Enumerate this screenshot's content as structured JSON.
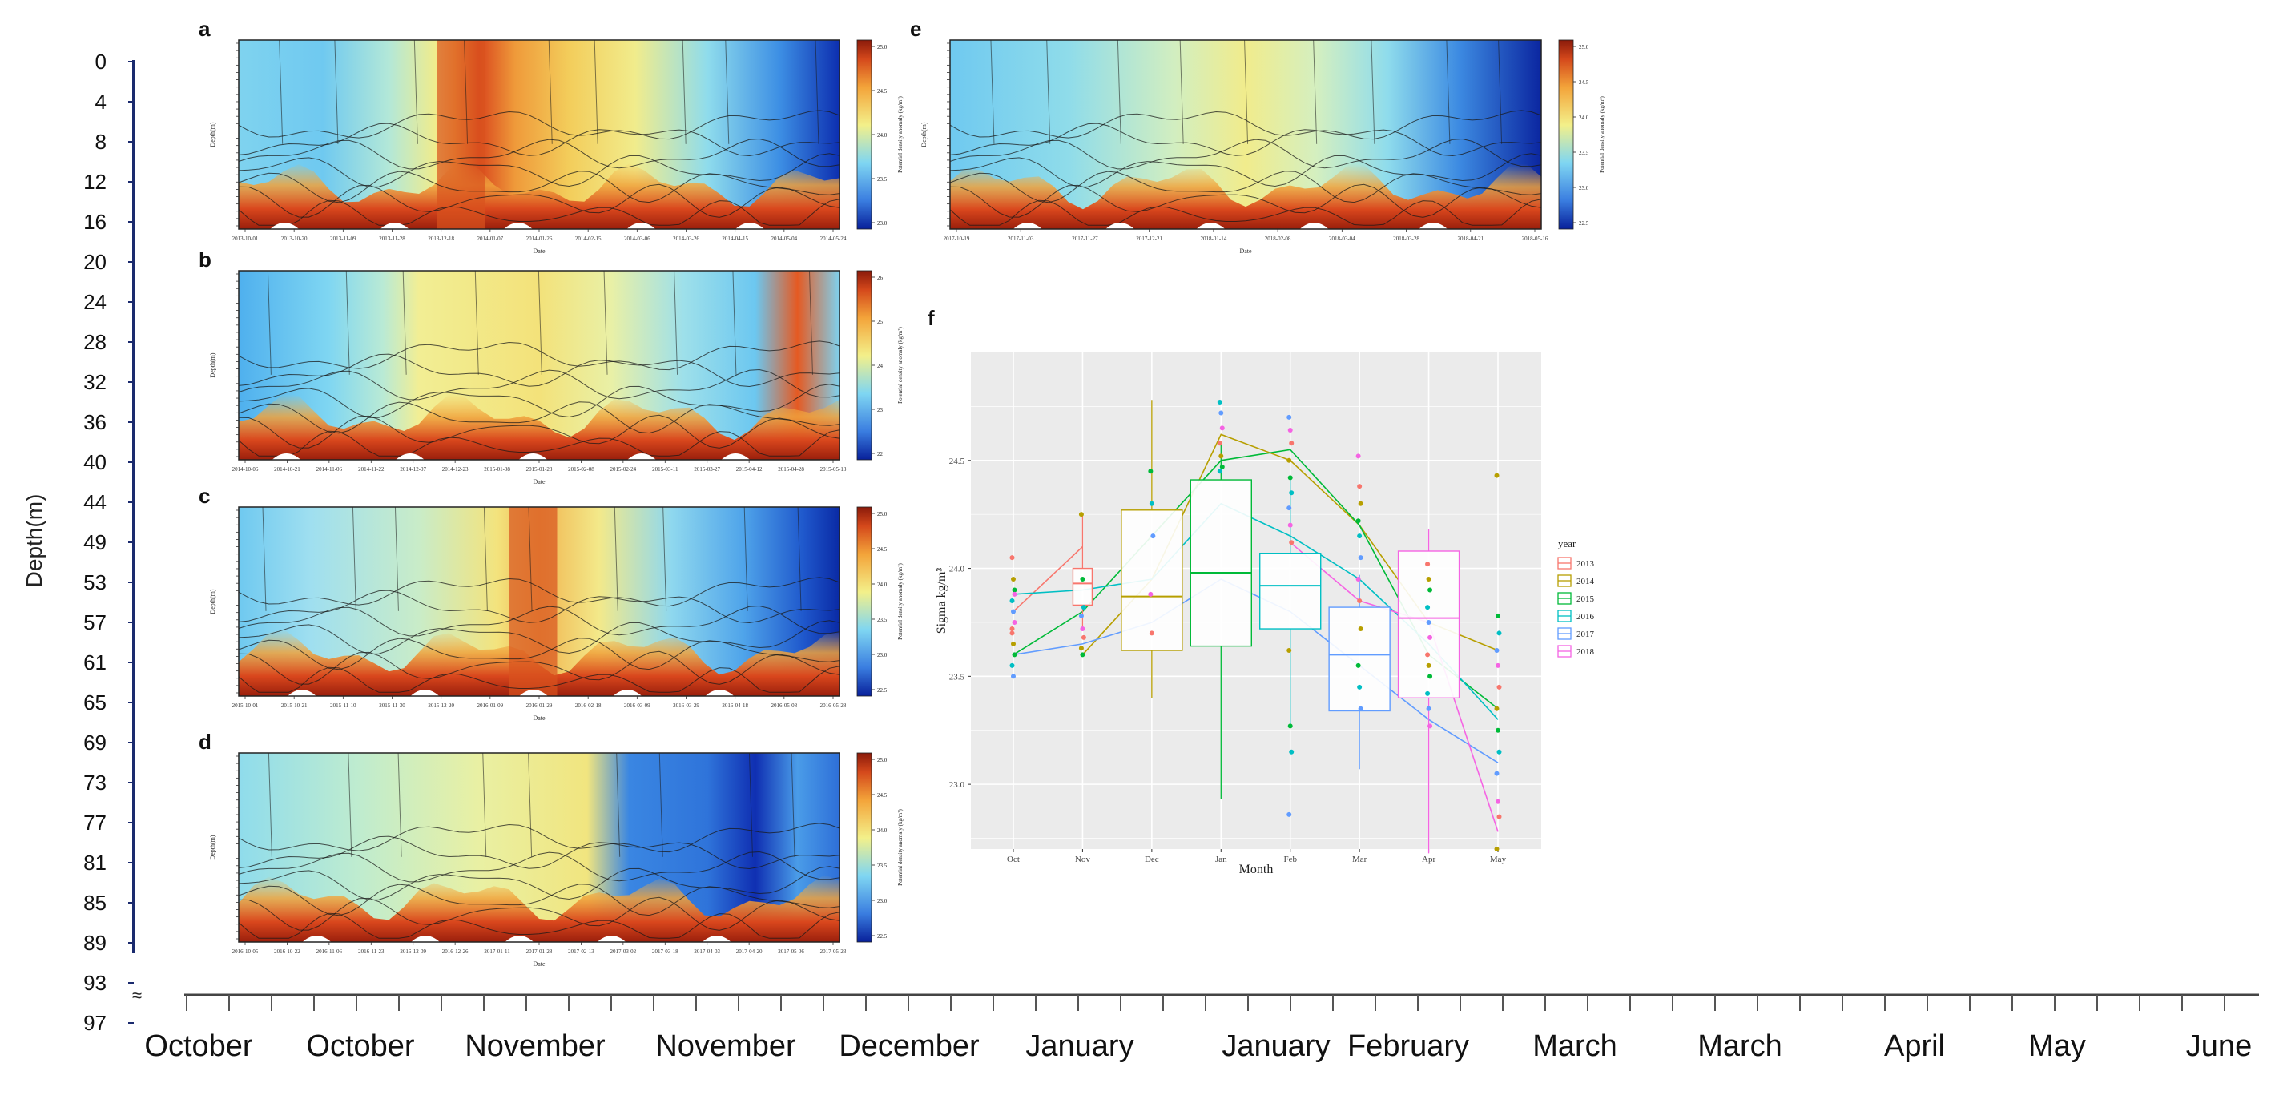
{
  "outer_axis": {
    "ylabel": "Depth(m)",
    "depth_ticks": [
      "0",
      "4",
      "8",
      "12",
      "16",
      "20",
      "24",
      "28",
      "32",
      "36",
      "40",
      "44",
      "49",
      "53",
      "57",
      "61",
      "65",
      "69",
      "73",
      "77",
      "81",
      "85",
      "89",
      "93",
      "97"
    ],
    "month_labels": [
      "October",
      "October",
      "November",
      "November",
      "December",
      "January",
      "January",
      "February",
      "March",
      "March",
      "April",
      "May",
      "June"
    ]
  },
  "panels": {
    "a": {
      "letter": "a",
      "xlabel": "Date",
      "ylabel": "Depth(m)",
      "cbar_label": "Potential density anomaly (kg/m³)",
      "cbar_ticks": [
        "25.0",
        "24.5",
        "24.0",
        "23.5",
        "23.0"
      ],
      "dates": [
        "2013-10-01",
        "2013-10-20",
        "2013-11-09",
        "2013-11-28",
        "2013-12-18",
        "2014-01-07",
        "2014-01-26",
        "2014-02-15",
        "2014-03-06",
        "2014-03-26",
        "2014-04-15",
        "2014-05-04",
        "2014-05-24"
      ]
    },
    "b": {
      "letter": "b",
      "xlabel": "Date",
      "ylabel": "Depth(m)",
      "cbar_label": "Potential density anomaly (kg/m³)",
      "cbar_ticks": [
        "26",
        "25",
        "24",
        "23",
        "22"
      ],
      "dates": [
        "2014-10-06",
        "2014-10-21",
        "2014-11-06",
        "2014-11-22",
        "2014-12-07",
        "2014-12-23",
        "2015-01-08",
        "2015-01-23",
        "2015-02-08",
        "2015-02-24",
        "2015-03-11",
        "2015-03-27",
        "2015-04-12",
        "2015-04-28",
        "2015-05-13"
      ]
    },
    "c": {
      "letter": "c",
      "xlabel": "Date",
      "ylabel": "Depth(m)",
      "cbar_label": "Potential density anomaly (kg/m³)",
      "cbar_ticks": [
        "25.0",
        "24.5",
        "24.0",
        "23.5",
        "23.0",
        "22.5"
      ],
      "dates": [
        "2015-10-01",
        "2015-10-21",
        "2015-11-10",
        "2015-11-30",
        "2015-12-20",
        "2016-01-09",
        "2016-01-29",
        "2016-02-18",
        "2016-03-09",
        "2016-03-29",
        "2016-04-18",
        "2016-05-08",
        "2016-05-28"
      ]
    },
    "d": {
      "letter": "d",
      "xlabel": "Date",
      "ylabel": "Depth(m)",
      "cbar_label": "Potential density anomaly (kg/m³)",
      "cbar_ticks": [
        "25.0",
        "24.5",
        "24.0",
        "23.5",
        "23.0",
        "22.5"
      ],
      "dates": [
        "2016-10-05",
        "2016-10-22",
        "2016-11-06",
        "2016-11-23",
        "2016-12-09",
        "2016-12-26",
        "2017-01-11",
        "2017-01-28",
        "2017-02-13",
        "2017-03-02",
        "2017-03-18",
        "2017-04-03",
        "2017-04-20",
        "2017-05-06",
        "2017-05-23"
      ]
    },
    "e": {
      "letter": "e",
      "xlabel": "Date",
      "ylabel": "Depth(m)",
      "cbar_label": "Potential density anomaly (kg/m³)",
      "cbar_ticks": [
        "25.0",
        "24.5",
        "24.0",
        "23.5",
        "23.0",
        "22.5"
      ],
      "dates": [
        "2017-10-19",
        "2017-11-03",
        "2017-11-27",
        "2017-12-21",
        "2018-01-14",
        "2018-02-08",
        "2018-03-04",
        "2018-03-28",
        "2018-04-21",
        "2018-05-16"
      ]
    }
  },
  "chart_data": {
    "type": "box",
    "panel_letter": "f",
    "title": "",
    "xlabel": "Month",
    "ylabel": "Sigma kg/m³",
    "categories": [
      "Oct",
      "Nov",
      "Dec",
      "Jan",
      "Feb",
      "Mar",
      "Apr",
      "May"
    ],
    "y_ticks": [
      "23.0",
      "23.5",
      "24.0",
      "24.5"
    ],
    "ylim": [
      22.7,
      25.0
    ],
    "legend_title": "year",
    "legend_position": "right",
    "series": [
      {
        "name": "2013",
        "color": "#F8766D",
        "month_means": [
          23.8,
          24.1,
          null,
          null,
          null,
          null,
          null,
          null
        ],
        "boxes": [
          {
            "month": "Nov",
            "q1": 23.83,
            "median": 23.93,
            "q3": 24.0,
            "low": 23.72,
            "high": 24.25
          }
        ]
      },
      {
        "name": "2014",
        "color": "#B79F00",
        "month_means": [
          null,
          23.6,
          23.95,
          24.62,
          24.5,
          24.2,
          23.75,
          23.62
        ],
        "boxes": [
          {
            "month": "Dec",
            "q1": 23.62,
            "median": 23.87,
            "q3": 24.27,
            "low": 23.4,
            "high": 24.78
          }
        ]
      },
      {
        "name": "2015",
        "color": "#00BA38",
        "month_means": [
          23.6,
          23.8,
          24.15,
          24.5,
          24.55,
          24.2,
          23.6,
          23.35
        ],
        "boxes": [
          {
            "month": "Jan",
            "q1": 23.64,
            "median": 23.98,
            "q3": 24.41,
            "low": 22.93,
            "high": 24.58
          }
        ]
      },
      {
        "name": "2016",
        "color": "#00BFC4",
        "month_means": [
          23.88,
          23.9,
          23.95,
          24.3,
          24.15,
          23.95,
          23.65,
          23.3
        ],
        "boxes": [
          {
            "month": "Feb",
            "q1": 23.72,
            "median": 23.92,
            "q3": 24.07,
            "low": 23.27,
            "high": 24.42
          }
        ]
      },
      {
        "name": "2017",
        "color": "#619CFF",
        "month_means": [
          23.6,
          23.65,
          23.75,
          23.95,
          23.8,
          23.55,
          23.3,
          23.1
        ],
        "boxes": [
          {
            "month": "Mar",
            "q1": 23.34,
            "median": 23.6,
            "q3": 23.82,
            "low": 23.07,
            "high": 23.97
          }
        ]
      },
      {
        "name": "2018",
        "color": "#F564E3",
        "month_means": [
          null,
          null,
          null,
          null,
          24.12,
          23.85,
          23.75,
          22.78
        ],
        "boxes": [
          {
            "month": "Apr",
            "q1": 23.4,
            "median": 23.77,
            "q3": 24.08,
            "low": 22.68,
            "high": 24.18
          }
        ]
      }
    ],
    "points": [
      {
        "month": "Oct",
        "values": [
          24.05,
          23.95,
          23.9,
          23.85,
          23.8,
          23.75,
          23.7,
          23.65,
          23.6,
          23.55,
          23.5,
          23.88,
          23.72
        ]
      },
      {
        "month": "Nov",
        "values": [
          24.25,
          23.95,
          23.82,
          23.78,
          23.72,
          23.68,
          23.63,
          23.6
        ]
      },
      {
        "month": "Dec",
        "values": [
          24.45,
          24.3,
          24.15,
          23.88,
          23.7
        ]
      },
      {
        "month": "Jan",
        "values": [
          24.77,
          24.72,
          24.65,
          24.58,
          24.52,
          24.47,
          24.45
        ]
      },
      {
        "month": "Feb",
        "values": [
          24.7,
          24.64,
          24.58,
          24.5,
          24.42,
          24.35,
          24.28,
          24.2,
          24.12,
          23.62,
          23.27,
          23.15,
          22.86
        ]
      },
      {
        "month": "Mar",
        "values": [
          24.52,
          24.38,
          24.3,
          24.22,
          24.15,
          24.05,
          23.95,
          23.85,
          23.72,
          23.55,
          23.45,
          23.35
        ]
      },
      {
        "month": "Apr",
        "values": [
          24.02,
          23.95,
          23.9,
          23.82,
          23.75,
          23.68,
          23.6,
          23.55,
          23.5,
          23.42,
          23.35,
          23.27
        ]
      },
      {
        "month": "May",
        "values": [
          24.43,
          23.78,
          23.7,
          23.62,
          23.55,
          23.45,
          23.35,
          23.25,
          23.15,
          23.05,
          22.92,
          22.85,
          22.7
        ]
      }
    ]
  }
}
